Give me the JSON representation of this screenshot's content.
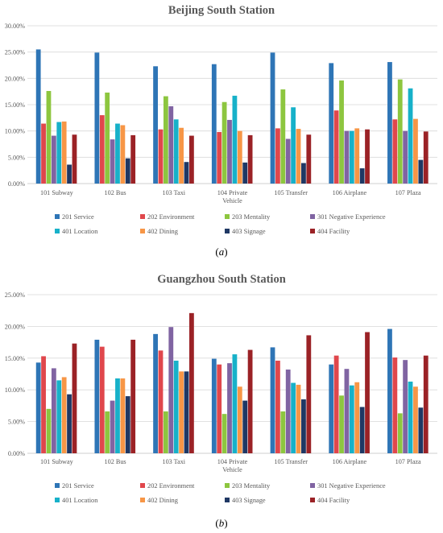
{
  "chart_data": [
    {
      "type": "bar",
      "title": "Beijing South Station",
      "panel_label": "(a)",
      "panel_label_letter": "a",
      "ylim": [
        0,
        0.3
      ],
      "yticks": [
        "0.00%",
        "5.00%",
        "10.00%",
        "15.00%",
        "20.00%",
        "25.00%",
        "30.00%"
      ],
      "grid": true,
      "legend_position": "bottom",
      "categories": [
        "101 Subway",
        "102 Bus",
        "103 Taxi",
        "104 Private Vehicle",
        "105 Transfer",
        "106 Airplane",
        "107 Plaza"
      ],
      "series": [
        {
          "name": "201 Service",
          "color": "#2E75B6",
          "values": [
            0.255,
            0.249,
            0.223,
            0.227,
            0.249,
            0.229,
            0.231
          ]
        },
        {
          "name": "202 Environment",
          "color": "#E0474C",
          "values": [
            0.114,
            0.13,
            0.103,
            0.098,
            0.105,
            0.139,
            0.122
          ]
        },
        {
          "name": "203 Mentality",
          "color": "#8DC63F",
          "values": [
            0.176,
            0.173,
            0.166,
            0.155,
            0.179,
            0.196,
            0.198
          ]
        },
        {
          "name": "301 Negative Experience",
          "color": "#8064A2",
          "values": [
            0.091,
            0.084,
            0.147,
            0.121,
            0.085,
            0.1,
            0.1
          ]
        },
        {
          "name": "401 Location",
          "color": "#17B1C9",
          "values": [
            0.117,
            0.114,
            0.122,
            0.167,
            0.145,
            0.1,
            0.181
          ]
        },
        {
          "name": "402 Dining",
          "color": "#F79646",
          "values": [
            0.118,
            0.111,
            0.106,
            0.1,
            0.104,
            0.105,
            0.123
          ]
        },
        {
          "name": "403 Signage",
          "color": "#1F3864",
          "values": [
            0.036,
            0.048,
            0.041,
            0.04,
            0.039,
            0.029,
            0.045
          ]
        },
        {
          "name": "404 Facility",
          "color": "#9B2226",
          "values": [
            0.093,
            0.092,
            0.091,
            0.092,
            0.093,
            0.103,
            0.099
          ]
        }
      ]
    },
    {
      "type": "bar",
      "title": "Guangzhou South Station",
      "panel_label": "(b)",
      "panel_label_letter": "b",
      "ylim": [
        0,
        0.25
      ],
      "yticks": [
        "0.00%",
        "5.00%",
        "10.00%",
        "15.00%",
        "20.00%",
        "25.00%"
      ],
      "grid": true,
      "legend_position": "bottom",
      "categories": [
        "101 Subway",
        "102 Bus",
        "103 Taxi",
        "104 Private Vehicle",
        "105 Transfer",
        "106 Airplane",
        "107 Plaza"
      ],
      "series": [
        {
          "name": "201 Service",
          "color": "#2E75B6",
          "values": [
            0.143,
            0.179,
            0.188,
            0.149,
            0.167,
            0.14,
            0.196
          ]
        },
        {
          "name": "202 Environment",
          "color": "#E0474C",
          "values": [
            0.153,
            0.168,
            0.162,
            0.14,
            0.146,
            0.154,
            0.151
          ]
        },
        {
          "name": "203 Mentality",
          "color": "#8DC63F",
          "values": [
            0.07,
            0.066,
            0.066,
            0.062,
            0.066,
            0.091,
            0.063
          ]
        },
        {
          "name": "301 Negative Experience",
          "color": "#8064A2",
          "values": [
            0.134,
            0.083,
            0.199,
            0.142,
            0.132,
            0.133,
            0.147
          ]
        },
        {
          "name": "401 Location",
          "color": "#17B1C9",
          "values": [
            0.115,
            0.118,
            0.146,
            0.156,
            0.111,
            0.107,
            0.113
          ]
        },
        {
          "name": "402 Dining",
          "color": "#F79646",
          "values": [
            0.12,
            0.118,
            0.129,
            0.105,
            0.108,
            0.112,
            0.105
          ]
        },
        {
          "name": "403 Signage",
          "color": "#1F3864",
          "values": [
            0.093,
            0.09,
            0.129,
            0.083,
            0.085,
            0.073,
            0.072
          ]
        },
        {
          "name": "404 Facility",
          "color": "#9B2226",
          "values": [
            0.173,
            0.179,
            0.221,
            0.163,
            0.186,
            0.191,
            0.154
          ]
        }
      ]
    }
  ]
}
